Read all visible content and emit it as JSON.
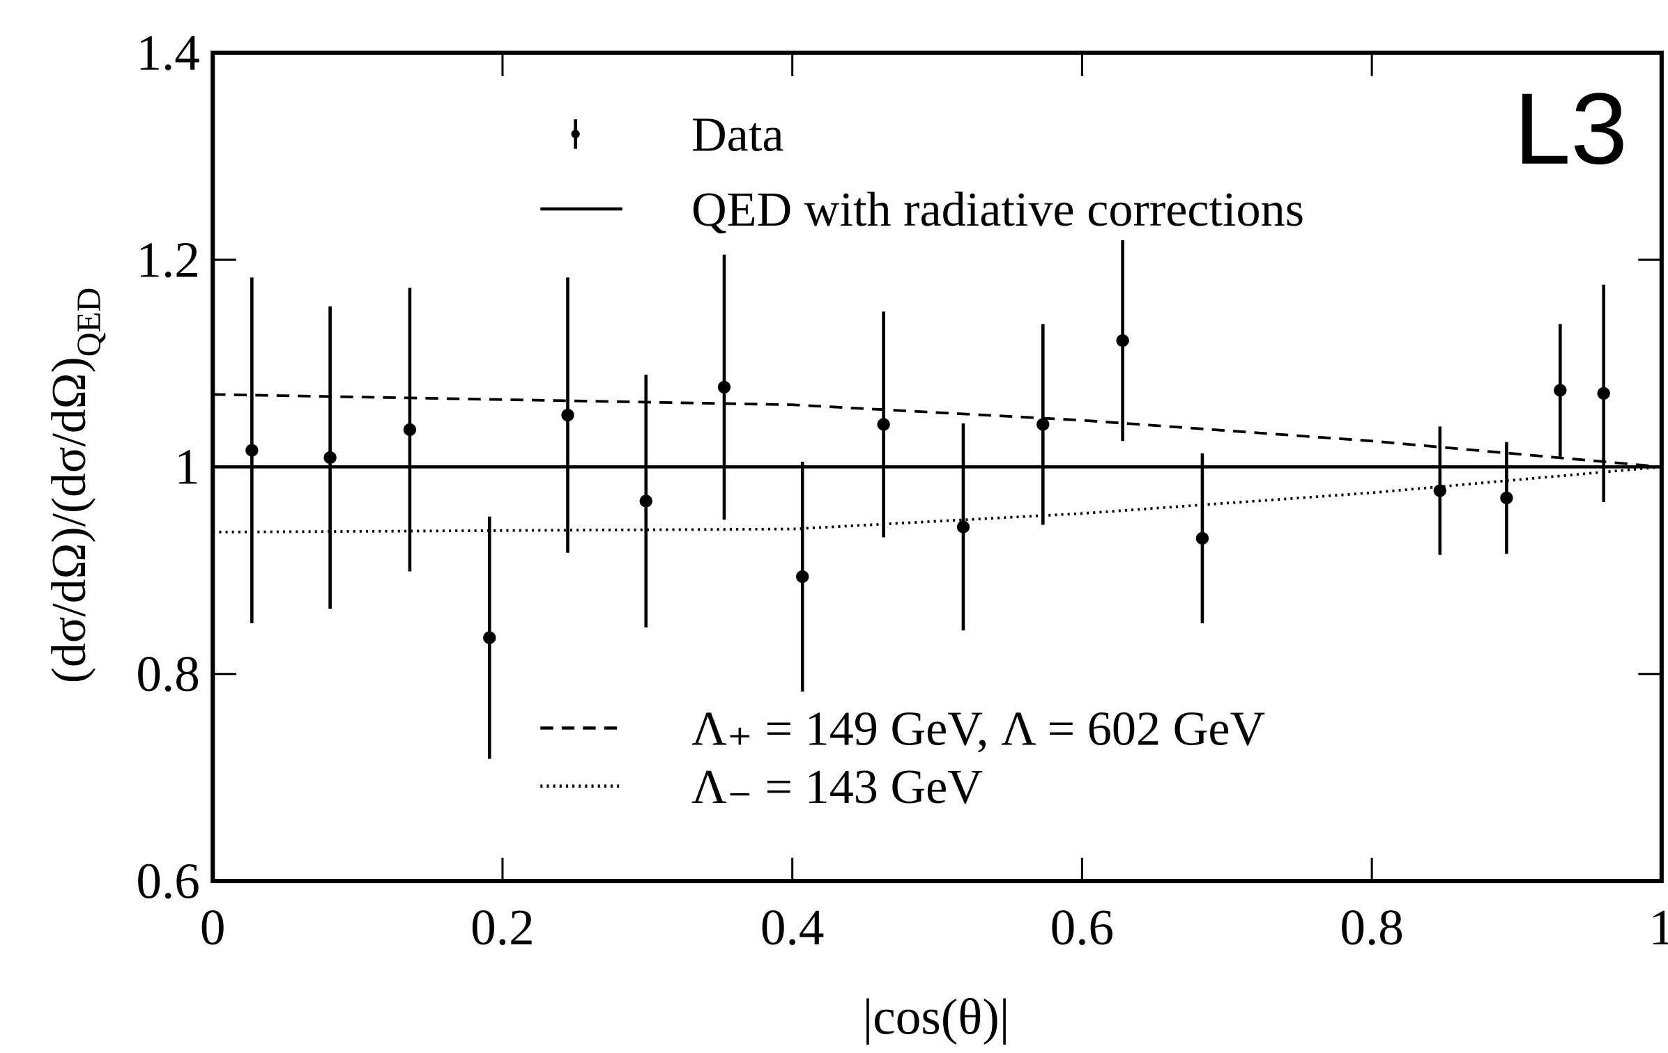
{
  "chart_data": {
    "type": "scatter",
    "xlabel": "|cos(θ)|",
    "ylabel": "(dσ/dΩ)/(dσ/dΩ)",
    "ylabel_subscript": "QED",
    "annotation": "L3",
    "xlim": [
      0,
      1
    ],
    "xticks": [
      0,
      0.2,
      0.4,
      0.6,
      0.8,
      1
    ],
    "ylim": [
      0.6,
      1.4
    ],
    "yticks": [
      0.6,
      0.8,
      1,
      1.2,
      1.4
    ],
    "series": [
      {
        "name": "Data",
        "style": "errorbar",
        "color": "#000000",
        "x": [
          0.027,
          0.081,
          0.136,
          0.191,
          0.245,
          0.299,
          0.353,
          0.407,
          0.463,
          0.518,
          0.573,
          0.628,
          0.683,
          0.847,
          0.893,
          0.93,
          0.96
        ],
        "values": [
          1.016,
          1.009,
          1.036,
          0.835,
          1.05,
          0.967,
          1.077,
          0.894,
          1.041,
          0.942,
          1.041,
          1.122,
          0.931,
          0.977,
          0.97,
          1.074,
          1.071
        ],
        "errors": [
          0.167,
          0.146,
          0.137,
          0.117,
          0.133,
          0.122,
          0.128,
          0.111,
          0.109,
          0.1,
          0.097,
          0.097,
          0.082,
          0.062,
          0.054,
          0.064,
          0.105
        ]
      },
      {
        "name": "QED with radiative corrections",
        "style": "solid",
        "color": "#000000",
        "x": [
          0,
          1
        ],
        "values": [
          1,
          1
        ]
      },
      {
        "name": "Λ₊ = 149 GeV, Λ = 602 GeV",
        "style": "dashed",
        "color": "#000000",
        "x": [
          0,
          0.4,
          0.6,
          0.8,
          1
        ],
        "values": [
          1.07,
          1.06,
          1.045,
          1.025,
          1.0
        ]
      },
      {
        "name": "Λ₋ = 143 GeV",
        "style": "dotted",
        "color": "#000000",
        "x": [
          0,
          0.4,
          0.6,
          0.8,
          1
        ],
        "values": [
          0.937,
          0.94,
          0.955,
          0.975,
          1.0
        ]
      }
    ]
  }
}
